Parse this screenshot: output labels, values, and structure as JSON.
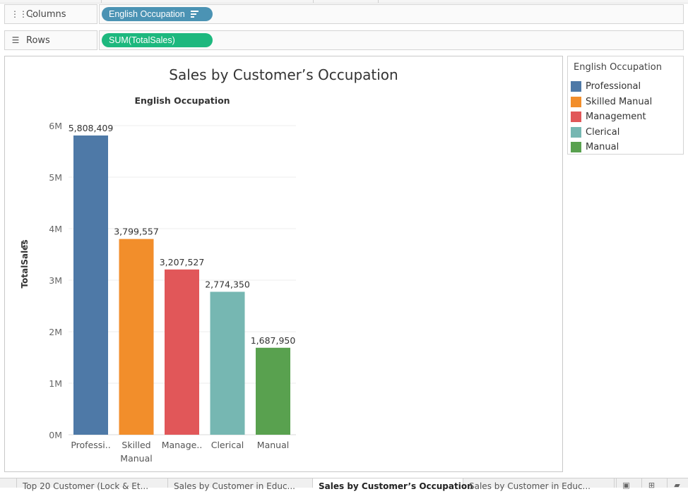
{
  "shelves": {
    "columns": {
      "label": "Columns",
      "icon": "columns-icon",
      "pill": "English Occupation",
      "pill_color": "#4b93b4"
    },
    "rows": {
      "label": "Rows",
      "icon": "rows-icon",
      "pill": "SUM(TotalSales)",
      "pill_color": "#1db87e"
    }
  },
  "legend": {
    "title": "English Occupation",
    "items": [
      {
        "label": "Professional",
        "color": "#4e79a7"
      },
      {
        "label": "Skilled Manual",
        "color": "#f28e2b"
      },
      {
        "label": "Management",
        "color": "#e15759"
      },
      {
        "label": "Clerical",
        "color": "#76b7b2"
      },
      {
        "label": "Manual",
        "color": "#59a14f"
      }
    ]
  },
  "chart_data": {
    "type": "bar",
    "title": "Sales by Customer’s Occupation",
    "header": "English Occupation",
    "ylabel": "TotalSales",
    "categories": [
      "Professional",
      "Skilled Manual",
      "Management",
      "Clerical",
      "Manual"
    ],
    "tick_labels": [
      "Professi..",
      "Skilled Manual",
      "Manage..",
      "Clerical",
      "Manual"
    ],
    "values": [
      5808409,
      3799557,
      3207527,
      2774350,
      1687950
    ],
    "data_labels": [
      "5,808,409",
      "3,799,557",
      "3,207,527",
      "2,774,350",
      "1,687,950"
    ],
    "colors": [
      "#4e79a7",
      "#f28e2b",
      "#e15759",
      "#76b7b2",
      "#59a14f"
    ],
    "ylim": [
      0,
      6000000
    ],
    "yticks": [
      0,
      1000000,
      2000000,
      3000000,
      4000000,
      5000000,
      6000000
    ],
    "ytick_labels": [
      "0M",
      "1M",
      "2M",
      "3M",
      "4M",
      "5M",
      "6M"
    ],
    "grid": true
  },
  "tabs": [
    {
      "label": "Top 20 Customer (Lock & Et..."
    },
    {
      "label": "Sales by Customer in Educ..."
    },
    {
      "label": "Sales by Customer’s Occupation",
      "active": true
    },
    {
      "label": "Sales by Customer in Educ..."
    }
  ],
  "tab_controls": [
    "new-worksheet-icon",
    "new-dashboard-icon",
    "new-story-icon"
  ]
}
